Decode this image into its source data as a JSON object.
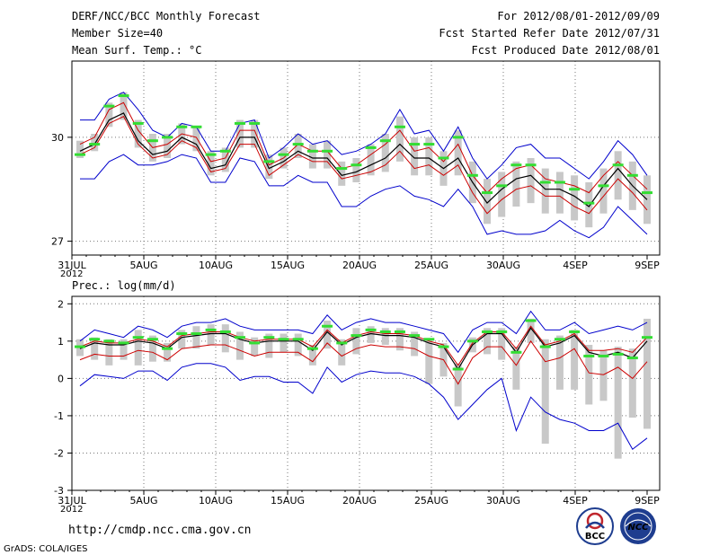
{
  "header": {
    "title": "DERF/NCC/BCC Monthly Forecast",
    "member_size": "Member Size=40",
    "variable_top": "Mean Surf. Temp.: °C",
    "for_range": "For 2012/08/01-2012/09/09",
    "started": "Fcst Started Refer Date 2012/07/31",
    "produced": "Fcst Produced Date 2012/08/01"
  },
  "x_ticks": [
    "31JUL",
    "5AUG",
    "10AUG",
    "15AUG",
    "20AUG",
    "25AUG",
    "30AUG",
    "4SEP",
    "9SEP"
  ],
  "x_year": "2012",
  "footer": {
    "url": "http://cmdp.ncc.cma.gov.cn",
    "grads": "GrADS: COLA/IGES",
    "logo_left_text": "BCC",
    "logo_right_text": "NCC"
  },
  "chart_data": [
    {
      "type": "line",
      "title": "Mean Surf. Temp.: °C",
      "ylim": [
        26.6,
        32.2
      ],
      "yticks": [
        27,
        30
      ],
      "x_days": 40,
      "series": {
        "upper_blue": [
          30.5,
          30.5,
          31.1,
          31.3,
          30.8,
          30.2,
          30.0,
          30.4,
          30.3,
          29.6,
          29.6,
          30.4,
          30.5,
          29.4,
          29.7,
          30.1,
          29.8,
          29.9,
          29.5,
          29.6,
          29.8,
          30.1,
          30.8,
          30.1,
          30.2,
          29.6,
          30.3,
          29.4,
          28.8,
          29.2,
          29.7,
          29.8,
          29.4,
          29.4,
          29.1,
          28.8,
          29.3,
          29.9,
          29.5,
          28.9
        ],
        "ens_upper_red": [
          29.8,
          30.0,
          30.8,
          31.0,
          30.2,
          29.7,
          29.8,
          30.1,
          30.0,
          29.3,
          29.4,
          30.2,
          30.2,
          29.2,
          29.4,
          29.8,
          29.6,
          29.6,
          29.1,
          29.2,
          29.5,
          29.8,
          30.2,
          29.6,
          29.7,
          29.3,
          29.8,
          28.9,
          28.4,
          28.8,
          29.1,
          29.2,
          28.8,
          28.7,
          28.6,
          28.4,
          28.9,
          29.3,
          28.9,
          28.5
        ],
        "ens_mean": [
          29.6,
          29.8,
          30.5,
          30.7,
          29.9,
          29.5,
          29.6,
          30.0,
          29.8,
          29.1,
          29.2,
          30.0,
          30.0,
          29.1,
          29.3,
          29.6,
          29.4,
          29.4,
          28.9,
          29.0,
          29.2,
          29.4,
          29.8,
          29.4,
          29.4,
          29.1,
          29.4,
          28.7,
          28.1,
          28.5,
          28.8,
          28.9,
          28.5,
          28.5,
          28.3,
          28.0,
          28.6,
          29.1,
          28.6,
          28.2
        ],
        "ens_lower_red": [
          29.5,
          29.7,
          30.4,
          30.6,
          29.8,
          29.4,
          29.5,
          29.9,
          29.7,
          29.0,
          29.1,
          29.8,
          29.8,
          28.9,
          29.2,
          29.5,
          29.3,
          29.3,
          28.8,
          28.9,
          29.0,
          29.2,
          29.6,
          29.1,
          29.2,
          28.9,
          29.2,
          28.4,
          27.8,
          28.2,
          28.5,
          28.6,
          28.3,
          28.3,
          28.0,
          27.8,
          28.3,
          28.8,
          28.4,
          27.9
        ],
        "lower_blue": [
          28.8,
          28.8,
          29.3,
          29.5,
          29.2,
          29.2,
          29.3,
          29.5,
          29.4,
          28.7,
          28.7,
          29.4,
          29.3,
          28.6,
          28.6,
          28.9,
          28.7,
          28.7,
          28.0,
          28.0,
          28.3,
          28.5,
          28.6,
          28.3,
          28.2,
          28.0,
          28.5,
          28.0,
          27.2,
          27.3,
          27.2,
          27.2,
          27.3,
          27.6,
          27.3,
          27.1,
          27.4,
          28.0,
          27.6,
          27.2
        ],
        "green_marks": [
          29.5,
          29.8,
          30.9,
          31.2,
          30.4,
          29.9,
          30.0,
          30.3,
          30.3,
          29.5,
          29.6,
          30.4,
          30.4,
          29.3,
          29.5,
          29.8,
          29.6,
          29.6,
          29.1,
          29.2,
          29.7,
          29.9,
          30.3,
          29.8,
          29.8,
          29.4,
          30.0,
          28.9,
          28.4,
          28.6,
          29.2,
          29.2,
          28.7,
          28.7,
          28.5,
          28.1,
          28.6,
          29.2,
          28.9,
          28.4
        ],
        "spread_low": [
          29.4,
          29.6,
          30.3,
          30.5,
          29.7,
          29.3,
          29.4,
          29.8,
          29.6,
          28.9,
          29.0,
          29.7,
          29.7,
          28.8,
          29.1,
          29.4,
          29.1,
          29.1,
          28.6,
          28.7,
          28.9,
          29.0,
          29.3,
          28.9,
          28.9,
          28.6,
          28.9,
          28.1,
          27.5,
          27.7,
          28.0,
          28.1,
          27.8,
          27.8,
          27.6,
          27.4,
          27.8,
          28.2,
          27.9,
          27.5
        ],
        "spread_high": [
          29.9,
          30.1,
          31.0,
          31.3,
          30.5,
          30.1,
          30.1,
          30.4,
          30.3,
          29.6,
          29.7,
          30.5,
          30.5,
          29.5,
          29.7,
          30.1,
          29.8,
          29.9,
          29.3,
          29.4,
          29.8,
          30.1,
          30.6,
          30.0,
          30.0,
          29.6,
          30.2,
          29.3,
          28.8,
          29.0,
          29.3,
          29.4,
          29.1,
          29.0,
          28.9,
          28.7,
          29.1,
          29.6,
          29.3,
          28.9
        ]
      }
    },
    {
      "type": "line",
      "title": "Prec.: log(mm/d)",
      "ylim": [
        -3,
        2.2
      ],
      "yticks": [
        -3,
        -2,
        -1,
        0,
        1,
        2
      ],
      "x_days": 40,
      "series": {
        "upper_blue": [
          1.0,
          1.3,
          1.2,
          1.1,
          1.4,
          1.3,
          1.1,
          1.4,
          1.5,
          1.5,
          1.6,
          1.4,
          1.3,
          1.3,
          1.3,
          1.3,
          1.2,
          1.7,
          1.3,
          1.5,
          1.6,
          1.5,
          1.5,
          1.4,
          1.3,
          1.2,
          0.7,
          1.3,
          1.5,
          1.5,
          1.2,
          1.8,
          1.3,
          1.3,
          1.5,
          1.2,
          1.3,
          1.4,
          1.3,
          1.5
        ],
        "ens_upper_red": [
          0.85,
          1.0,
          0.95,
          0.95,
          1.05,
          1.0,
          0.85,
          1.15,
          1.2,
          1.25,
          1.25,
          1.1,
          1.0,
          1.05,
          1.05,
          1.05,
          0.85,
          1.3,
          0.95,
          1.15,
          1.25,
          1.2,
          1.2,
          1.15,
          1.0,
          0.9,
          0.35,
          0.95,
          1.25,
          1.25,
          0.8,
          1.4,
          0.9,
          1.0,
          1.2,
          0.75,
          0.75,
          0.8,
          0.7,
          1.1
        ],
        "ens_mean": [
          0.8,
          0.95,
          0.9,
          0.9,
          1.0,
          0.95,
          0.8,
          1.1,
          1.15,
          1.2,
          1.2,
          1.05,
          0.95,
          1.0,
          1.0,
          1.0,
          0.75,
          1.25,
          0.9,
          1.1,
          1.2,
          1.15,
          1.15,
          1.1,
          0.95,
          0.85,
          0.25,
          0.9,
          1.2,
          1.2,
          0.7,
          1.35,
          0.85,
          0.95,
          1.15,
          0.7,
          0.6,
          0.7,
          0.55,
          1.0
        ],
        "ens_lower_red": [
          0.5,
          0.65,
          0.6,
          0.6,
          0.75,
          0.7,
          0.5,
          0.8,
          0.85,
          0.9,
          0.9,
          0.75,
          0.6,
          0.7,
          0.7,
          0.7,
          0.45,
          0.95,
          0.6,
          0.8,
          0.9,
          0.85,
          0.85,
          0.8,
          0.6,
          0.5,
          -0.15,
          0.55,
          0.85,
          0.85,
          0.35,
          1.0,
          0.45,
          0.55,
          0.8,
          0.15,
          0.1,
          0.3,
          0.0,
          0.45
        ],
        "lower_blue": [
          -0.2,
          0.1,
          0.05,
          0.0,
          0.2,
          0.2,
          -0.05,
          0.3,
          0.4,
          0.4,
          0.3,
          -0.05,
          0.05,
          0.05,
          -0.1,
          -0.1,
          -0.4,
          0.3,
          -0.1,
          0.1,
          0.2,
          0.15,
          0.15,
          0.05,
          -0.15,
          -0.5,
          -1.1,
          -0.7,
          -0.3,
          0.0,
          -1.4,
          -0.5,
          -0.9,
          -1.1,
          -1.2,
          -1.4,
          -1.4,
          -1.2,
          -1.9,
          -1.6
        ],
        "green_marks": [
          0.85,
          1.05,
          1.0,
          0.95,
          1.1,
          1.05,
          0.8,
          1.2,
          1.2,
          1.3,
          1.25,
          1.1,
          0.95,
          1.1,
          1.05,
          1.05,
          0.8,
          1.4,
          0.95,
          1.15,
          1.3,
          1.25,
          1.25,
          1.15,
          1.05,
          0.85,
          0.25,
          1.0,
          1.25,
          1.25,
          0.7,
          1.55,
          0.85,
          1.05,
          1.25,
          0.6,
          0.6,
          0.65,
          0.55,
          1.1
        ],
        "spread_low": [
          0.6,
          0.5,
          0.35,
          0.5,
          0.35,
          0.45,
          0.45,
          0.8,
          0.8,
          0.9,
          0.7,
          0.5,
          0.6,
          0.55,
          0.7,
          0.6,
          0.35,
          0.8,
          0.35,
          0.65,
          0.95,
          0.9,
          0.75,
          0.6,
          -0.15,
          0.05,
          -0.75,
          0.7,
          0.65,
          0.5,
          -0.3,
          0.95,
          -1.75,
          -0.3,
          -0.3,
          -0.7,
          -0.6,
          -2.15,
          -1.05,
          -1.35
        ],
        "spread_high": [
          1.05,
          1.1,
          1.05,
          1.05,
          1.3,
          1.15,
          0.95,
          1.3,
          1.4,
          1.45,
          1.45,
          1.25,
          1.1,
          1.2,
          1.2,
          1.2,
          0.9,
          1.55,
          1.05,
          1.35,
          1.4,
          1.35,
          1.35,
          1.25,
          1.05,
          0.95,
          0.4,
          1.1,
          1.35,
          1.35,
          0.85,
          1.6,
          1.05,
          1.15,
          1.3,
          0.9,
          0.75,
          0.85,
          0.8,
          1.6
        ]
      }
    }
  ]
}
